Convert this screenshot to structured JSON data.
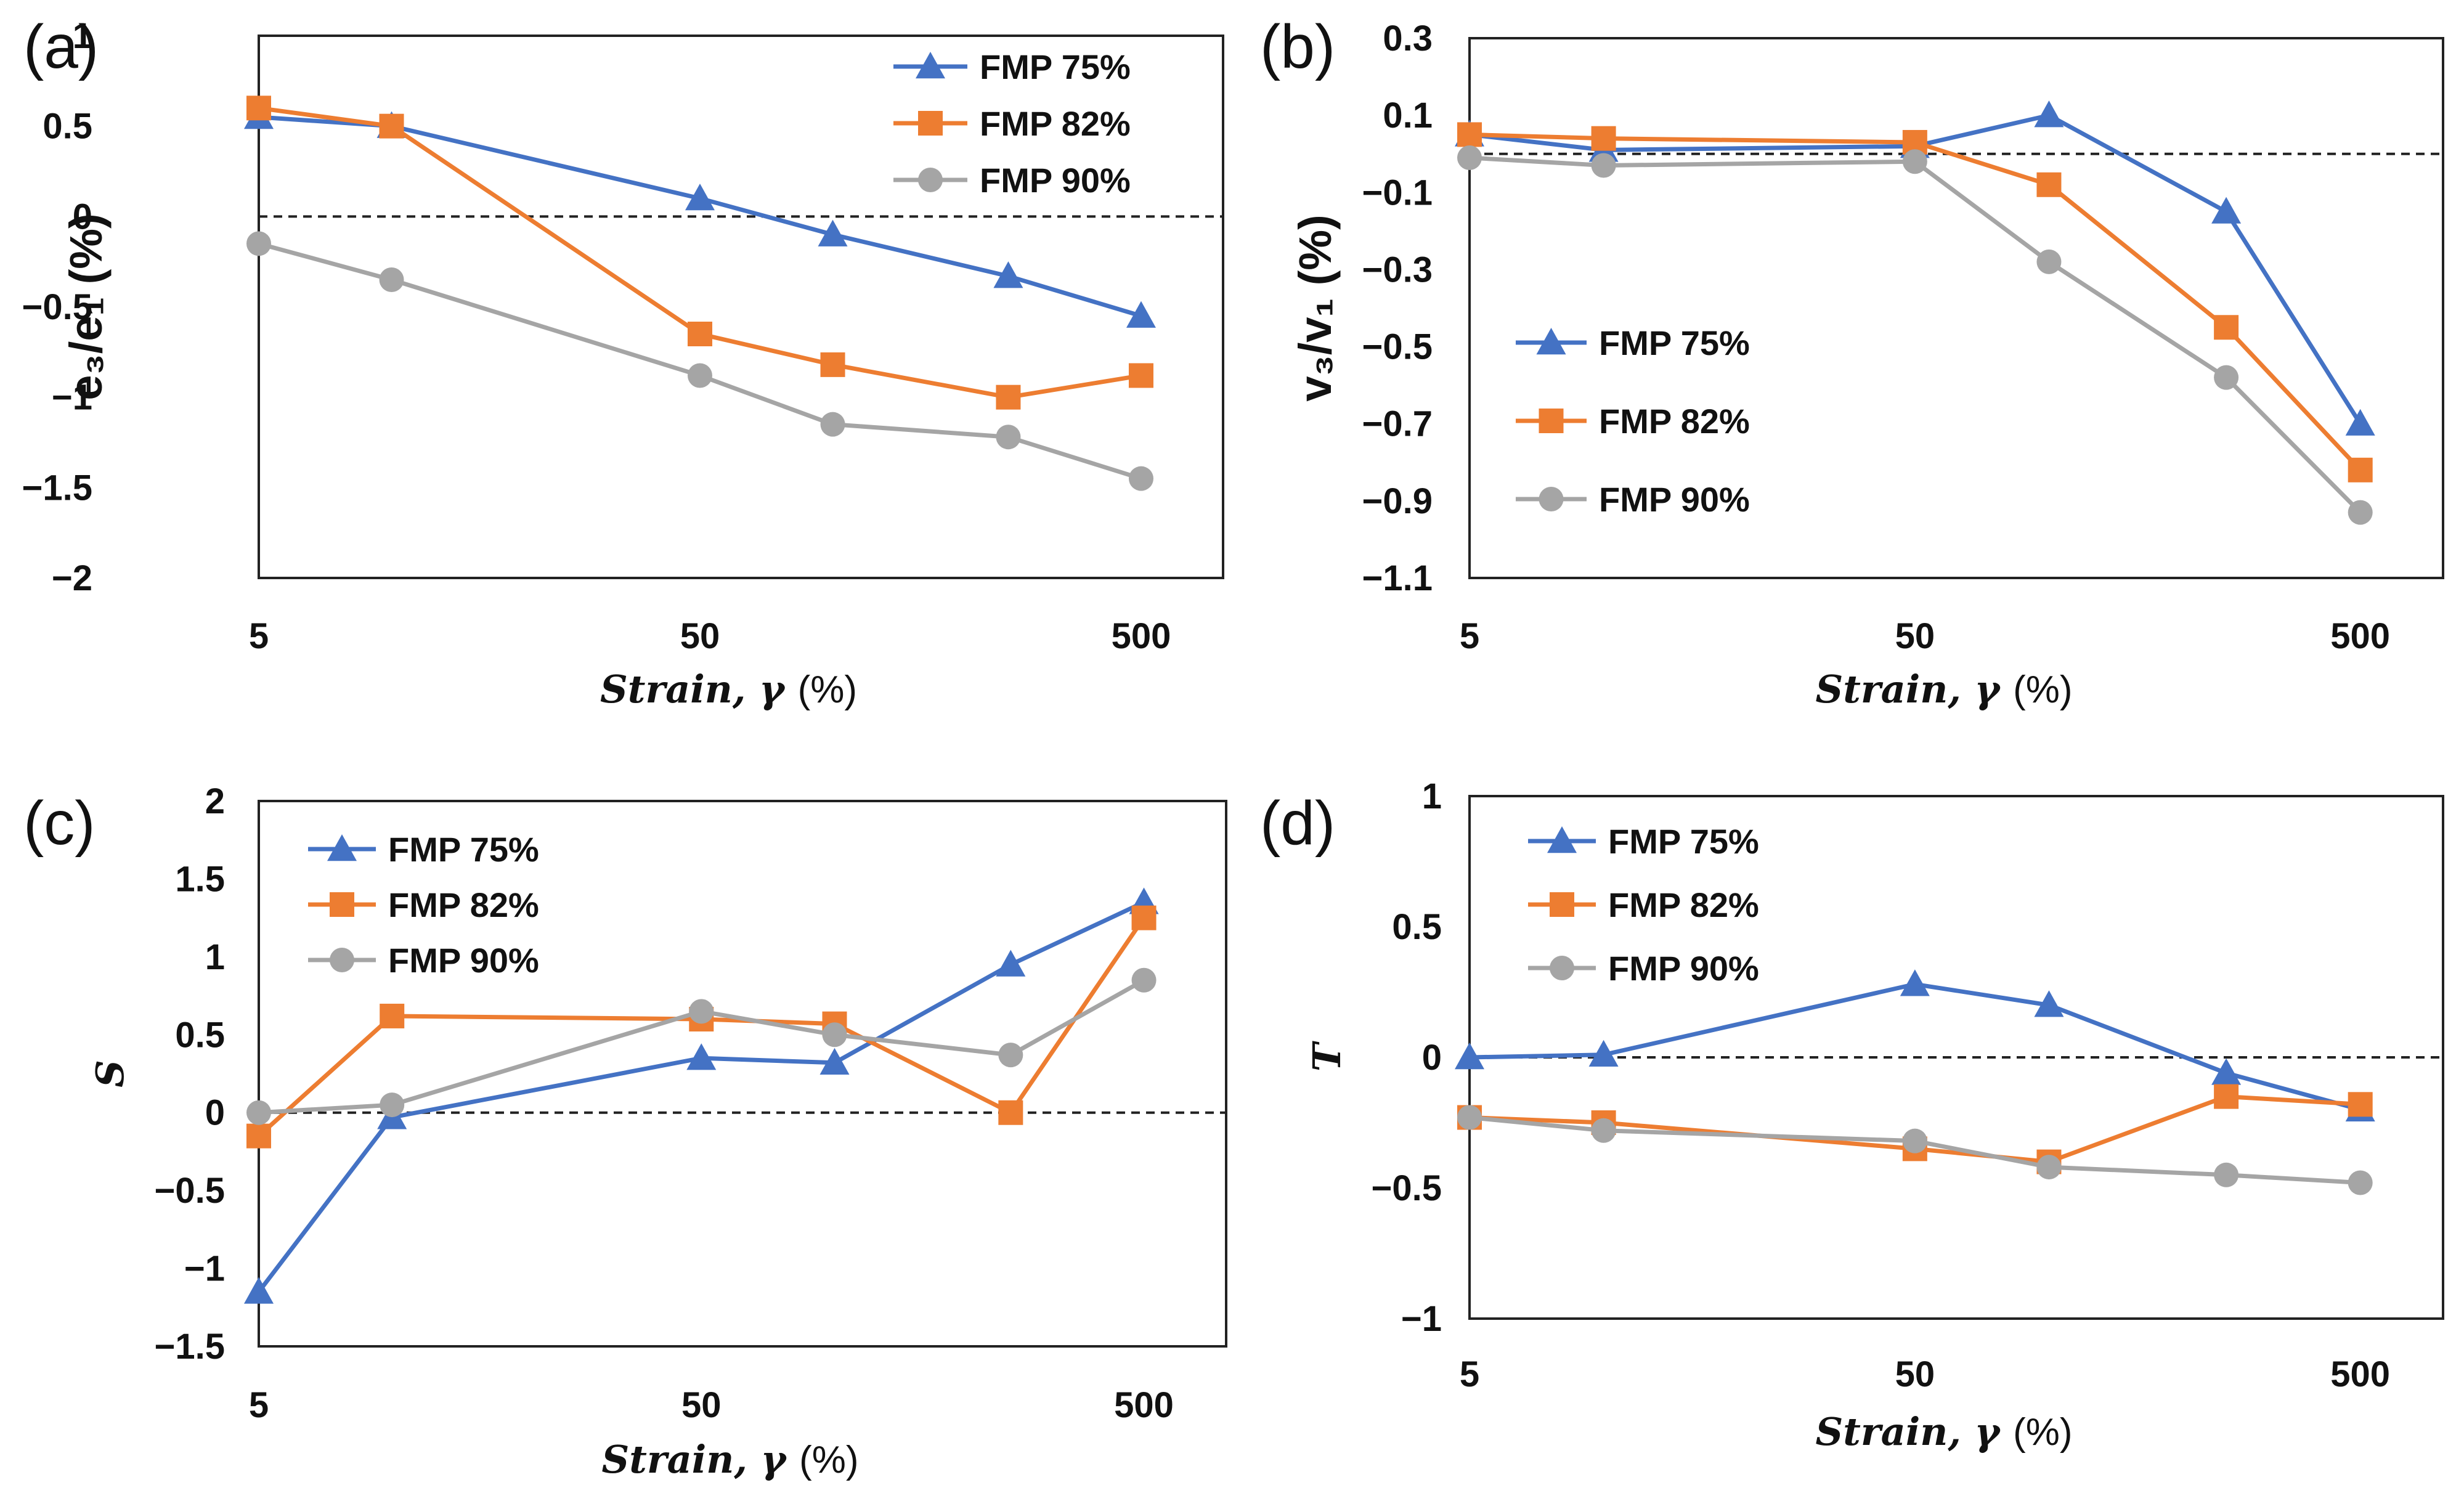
{
  "colors": {
    "FMP 75%": "#4472C4",
    "FMP 82%": "#ED7D31",
    "FMP 90%": "#A5A5A5",
    "frame": "#222222",
    "zero_line": "#222222"
  },
  "chart_data": [
    {
      "panel": "(a)",
      "type": "line",
      "xscale": "log",
      "x": [
        5,
        10,
        50,
        100,
        250,
        500
      ],
      "xticks": [
        "5",
        "50",
        "500"
      ],
      "ylim": [
        -2,
        1
      ],
      "yticks": [
        "1",
        "0.5",
        "0",
        "-0.5",
        "-1",
        "-1.5",
        "-2"
      ],
      "xlabel_italic": "Strain, γ",
      "xlabel_unit": "(%)",
      "ylabel": "e₃/e₁ (%)",
      "legend_position": "top-right",
      "series": [
        {
          "name": "FMP 75%",
          "marker": "triangle",
          "values": [
            0.55,
            0.5,
            0.1,
            -0.1,
            -0.33,
            -0.55
          ]
        },
        {
          "name": "FMP 82%",
          "marker": "square",
          "values": [
            0.6,
            0.5,
            -0.65,
            -0.82,
            -1.0,
            -0.88
          ]
        },
        {
          "name": "FMP 90%",
          "marker": "circle",
          "values": [
            -0.15,
            -0.35,
            -0.88,
            -1.15,
            -1.22,
            -1.45
          ]
        }
      ]
    },
    {
      "panel": "(b)",
      "type": "line",
      "xscale": "log",
      "x": [
        5,
        10,
        50,
        100,
        250,
        500
      ],
      "xticks": [
        "5",
        "50",
        "500"
      ],
      "ylim": [
        -1.1,
        0.3
      ],
      "yticks": [
        "0.3",
        "0.1",
        "-0.1",
        "-0.3",
        "-0.5",
        "-0.7",
        "-0.9",
        "-1.1"
      ],
      "xlabel_italic": "Strain, γ",
      "xlabel_unit": "(%)",
      "ylabel": "v₃/v₁ (%)",
      "legend_position": "left",
      "series": [
        {
          "name": "FMP 75%",
          "marker": "triangle",
          "values": [
            0.05,
            0.01,
            0.02,
            0.1,
            -0.15,
            -0.7
          ]
        },
        {
          "name": "FMP 82%",
          "marker": "square",
          "values": [
            0.05,
            0.04,
            0.03,
            -0.08,
            -0.45,
            -0.82
          ]
        },
        {
          "name": "FMP 90%",
          "marker": "circle",
          "values": [
            -0.01,
            -0.03,
            -0.02,
            -0.28,
            -0.58,
            -0.93
          ]
        }
      ]
    },
    {
      "panel": "(c)",
      "type": "line",
      "xscale": "log",
      "x": [
        5,
        10,
        50,
        100,
        250,
        500
      ],
      "xticks": [
        "5",
        "50",
        "500"
      ],
      "ylim": [
        -1.5,
        2
      ],
      "yticks": [
        "2",
        "1.5",
        "1",
        "0.5",
        "0",
        "-0.5",
        "-1",
        "-1.5"
      ],
      "xlabel_italic": "Strain, γ",
      "xlabel_unit": "(%)",
      "ylabel": "S",
      "legend_position": "top-left",
      "series": [
        {
          "name": "FMP 75%",
          "marker": "triangle",
          "values": [
            -1.15,
            -0.03,
            0.35,
            0.32,
            0.95,
            1.35
          ]
        },
        {
          "name": "FMP 82%",
          "marker": "square",
          "values": [
            -0.15,
            0.62,
            0.6,
            0.57,
            0.0,
            1.25
          ]
        },
        {
          "name": "FMP 90%",
          "marker": "circle",
          "values": [
            0.0,
            0.05,
            0.65,
            0.5,
            0.37,
            0.85
          ]
        }
      ]
    },
    {
      "panel": "(d)",
      "type": "line",
      "xscale": "log",
      "x": [
        5,
        10,
        50,
        100,
        250,
        500
      ],
      "xticks": [
        "5",
        "50",
        "500"
      ],
      "ylim": [
        -1,
        1
      ],
      "yticks": [
        "1",
        "0.5",
        "0",
        "-0.5",
        "-1"
      ],
      "xlabel_italic": "Strain, γ",
      "xlabel_unit": "(%)",
      "ylabel": "T",
      "legend_position": "top-left",
      "series": [
        {
          "name": "FMP 75%",
          "marker": "triangle",
          "values": [
            0.0,
            0.01,
            0.28,
            0.2,
            -0.06,
            -0.2
          ]
        },
        {
          "name": "FMP 82%",
          "marker": "square",
          "values": [
            -0.23,
            -0.25,
            -0.35,
            -0.4,
            -0.15,
            -0.18
          ]
        },
        {
          "name": "FMP 90%",
          "marker": "circle",
          "values": [
            -0.23,
            -0.28,
            -0.32,
            -0.42,
            -0.45,
            -0.48
          ]
        }
      ]
    }
  ]
}
